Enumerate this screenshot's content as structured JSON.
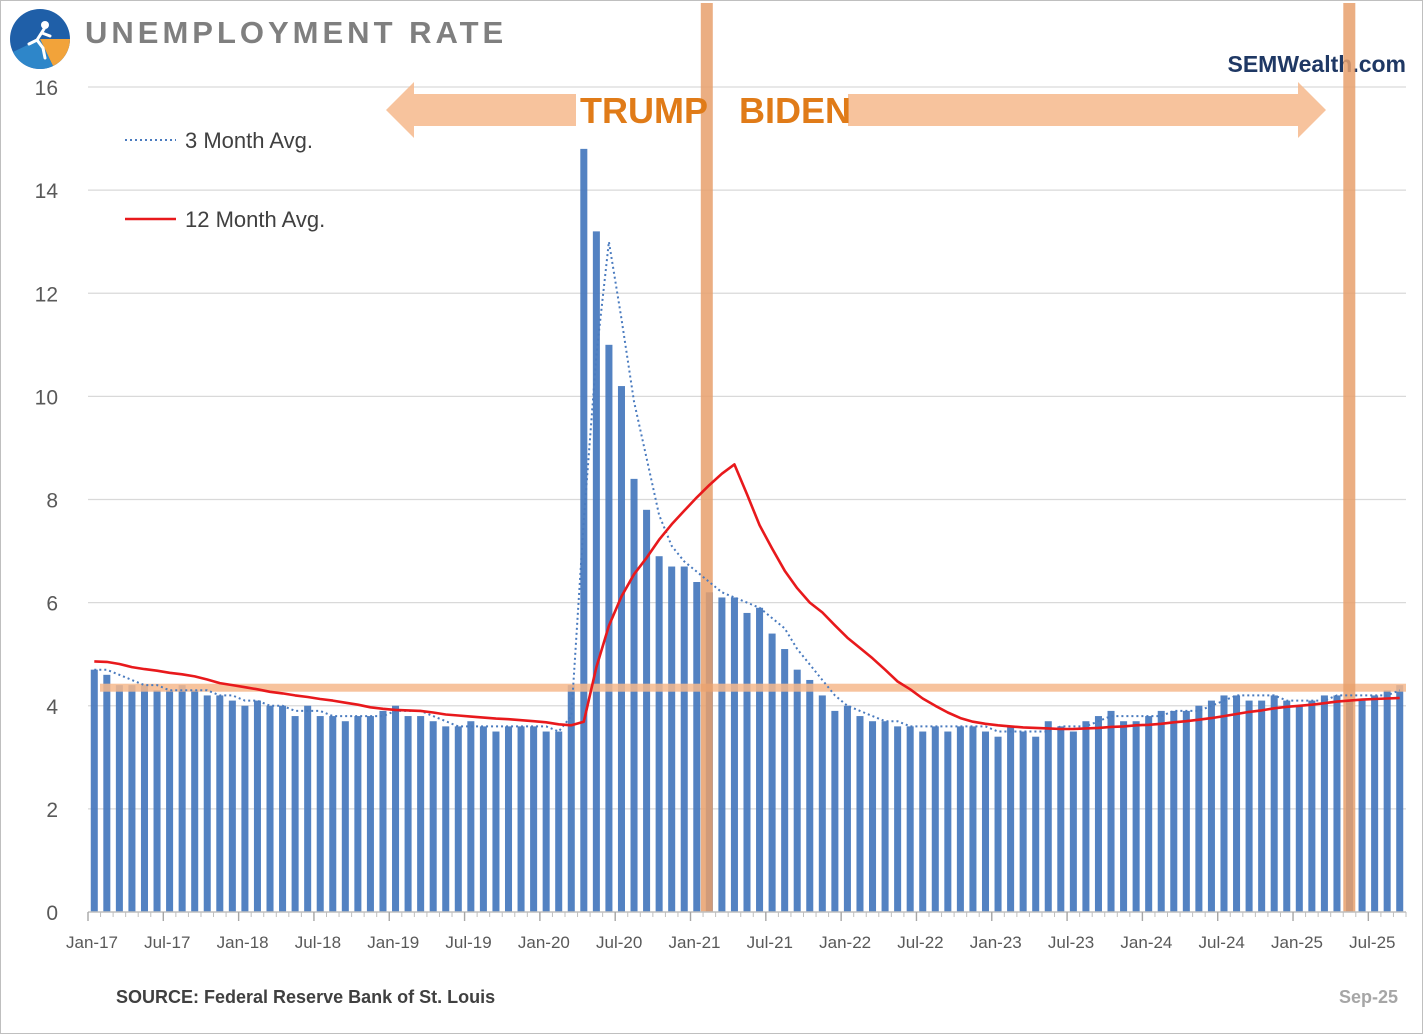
{
  "header": {
    "title": "UNEMPLOYMENT RATE",
    "brand": "SEMWealth.com",
    "source": "SOURCE:  Federal Reserve Bank of St. Louis",
    "date": "Sep-25"
  },
  "annotations": {
    "left_label": "TRUMP",
    "right_label": "BIDEN",
    "reference_level": 4.35,
    "inauguration_month": "Jan-21",
    "end_month": "Jan-25"
  },
  "colors": {
    "bar": "#4a7bbf",
    "avg3": "#4a7bbf",
    "avg12": "#e8191c",
    "highlight": "#f6b98c",
    "highlight_bar": "#e8a06c",
    "era_text": "#e07b18",
    "grid": "#d9d9d9"
  },
  "chart_data": {
    "type": "bar",
    "title": "UNEMPLOYMENT RATE",
    "xlabel": "",
    "ylabel": "",
    "ylim": [
      0,
      16
    ],
    "yticks": [
      0,
      2,
      4,
      6,
      8,
      10,
      12,
      14,
      16
    ],
    "x_start": "Jan-17",
    "x_end": "Sep-25",
    "tick_labels": [
      "Jan-17",
      "Jul-17",
      "Jan-18",
      "Jul-18",
      "Jan-19",
      "Jul-19",
      "Jan-20",
      "Jul-20",
      "Jan-21",
      "Jul-21",
      "Jan-22",
      "Jul-22",
      "Jan-23",
      "Jul-23",
      "Jan-24",
      "Jul-24",
      "Jan-25",
      "Jul-25"
    ],
    "grid": true,
    "legend_position": "top-left",
    "series": [
      {
        "name": "Unemployment Rate",
        "kind": "bar",
        "values": [
          4.7,
          4.6,
          4.4,
          4.4,
          4.4,
          4.3,
          4.3,
          4.4,
          4.3,
          4.2,
          4.2,
          4.1,
          4.0,
          4.1,
          4.0,
          4.0,
          3.8,
          4.0,
          3.8,
          3.8,
          3.7,
          3.8,
          3.8,
          3.9,
          4.0,
          3.8,
          3.8,
          3.7,
          3.6,
          3.6,
          3.7,
          3.6,
          3.5,
          3.6,
          3.6,
          3.6,
          3.5,
          3.5,
          4.4,
          14.8,
          13.2,
          11.0,
          10.2,
          8.4,
          7.8,
          6.9,
          6.7,
          6.7,
          6.4,
          6.2,
          6.1,
          6.1,
          5.8,
          5.9,
          5.4,
          5.1,
          4.7,
          4.5,
          4.2,
          3.9,
          4.0,
          3.8,
          3.7,
          3.7,
          3.6,
          3.6,
          3.5,
          3.6,
          3.5,
          3.6,
          3.6,
          3.5,
          3.4,
          3.6,
          3.5,
          3.4,
          3.7,
          3.6,
          3.5,
          3.7,
          3.8,
          3.9,
          3.7,
          3.7,
          3.8,
          3.9,
          3.9,
          3.9,
          4.0,
          4.1,
          4.2,
          4.2,
          4.1,
          4.1,
          4.2,
          4.1,
          4.0,
          4.1,
          4.2,
          4.2,
          4.1,
          4.1,
          4.2,
          4.3,
          4.4
        ]
      },
      {
        "name": "3 Month Avg.",
        "kind": "line",
        "style": "dotted",
        "values": [
          4.7,
          4.7,
          4.6,
          4.5,
          4.4,
          4.4,
          4.3,
          4.3,
          4.3,
          4.3,
          4.2,
          4.2,
          4.1,
          4.1,
          4.0,
          4.0,
          3.9,
          3.9,
          3.9,
          3.8,
          3.8,
          3.8,
          3.8,
          3.8,
          3.9,
          3.9,
          3.9,
          3.8,
          3.7,
          3.6,
          3.6,
          3.6,
          3.6,
          3.6,
          3.6,
          3.6,
          3.6,
          3.5,
          3.8,
          7.6,
          10.8,
          13.0,
          11.5,
          9.9,
          8.8,
          7.7,
          7.1,
          6.8,
          6.6,
          6.4,
          6.2,
          6.1,
          6.0,
          5.9,
          5.7,
          5.5,
          5.1,
          4.8,
          4.5,
          4.2,
          4.0,
          3.9,
          3.8,
          3.7,
          3.7,
          3.6,
          3.6,
          3.6,
          3.6,
          3.6,
          3.6,
          3.6,
          3.5,
          3.5,
          3.5,
          3.5,
          3.5,
          3.6,
          3.6,
          3.6,
          3.7,
          3.8,
          3.8,
          3.8,
          3.8,
          3.8,
          3.9,
          3.9,
          3.9,
          4.0,
          4.1,
          4.2,
          4.2,
          4.2,
          4.2,
          4.1,
          4.1,
          4.1,
          4.1,
          4.2,
          4.2,
          4.2,
          4.2,
          4.2,
          4.3
        ]
      },
      {
        "name": "12 Month Avg.",
        "kind": "line",
        "style": "solid",
        "values": [
          4.86,
          4.85,
          4.81,
          4.75,
          4.71,
          4.68,
          4.64,
          4.61,
          4.57,
          4.51,
          4.44,
          4.4,
          4.36,
          4.32,
          4.27,
          4.24,
          4.2,
          4.17,
          4.13,
          4.1,
          4.06,
          4.02,
          3.97,
          3.94,
          3.92,
          3.91,
          3.9,
          3.87,
          3.83,
          3.81,
          3.79,
          3.77,
          3.75,
          3.74,
          3.72,
          3.7,
          3.68,
          3.64,
          3.62,
          3.69,
          4.75,
          5.55,
          6.12,
          6.55,
          6.87,
          7.22,
          7.52,
          7.78,
          8.04,
          8.28,
          8.5,
          8.68,
          8.1,
          7.5,
          7.05,
          6.62,
          6.28,
          6.0,
          5.81,
          5.56,
          5.32,
          5.12,
          4.92,
          4.7,
          4.47,
          4.32,
          4.14,
          4.0,
          3.87,
          3.76,
          3.69,
          3.65,
          3.62,
          3.6,
          3.58,
          3.57,
          3.56,
          3.55,
          3.55,
          3.56,
          3.57,
          3.59,
          3.6,
          3.62,
          3.63,
          3.65,
          3.68,
          3.7,
          3.73,
          3.76,
          3.8,
          3.84,
          3.88,
          3.91,
          3.95,
          3.98,
          4.0,
          4.02,
          4.05,
          4.08,
          4.1,
          4.12,
          4.13,
          4.14,
          4.15
        ]
      }
    ]
  }
}
